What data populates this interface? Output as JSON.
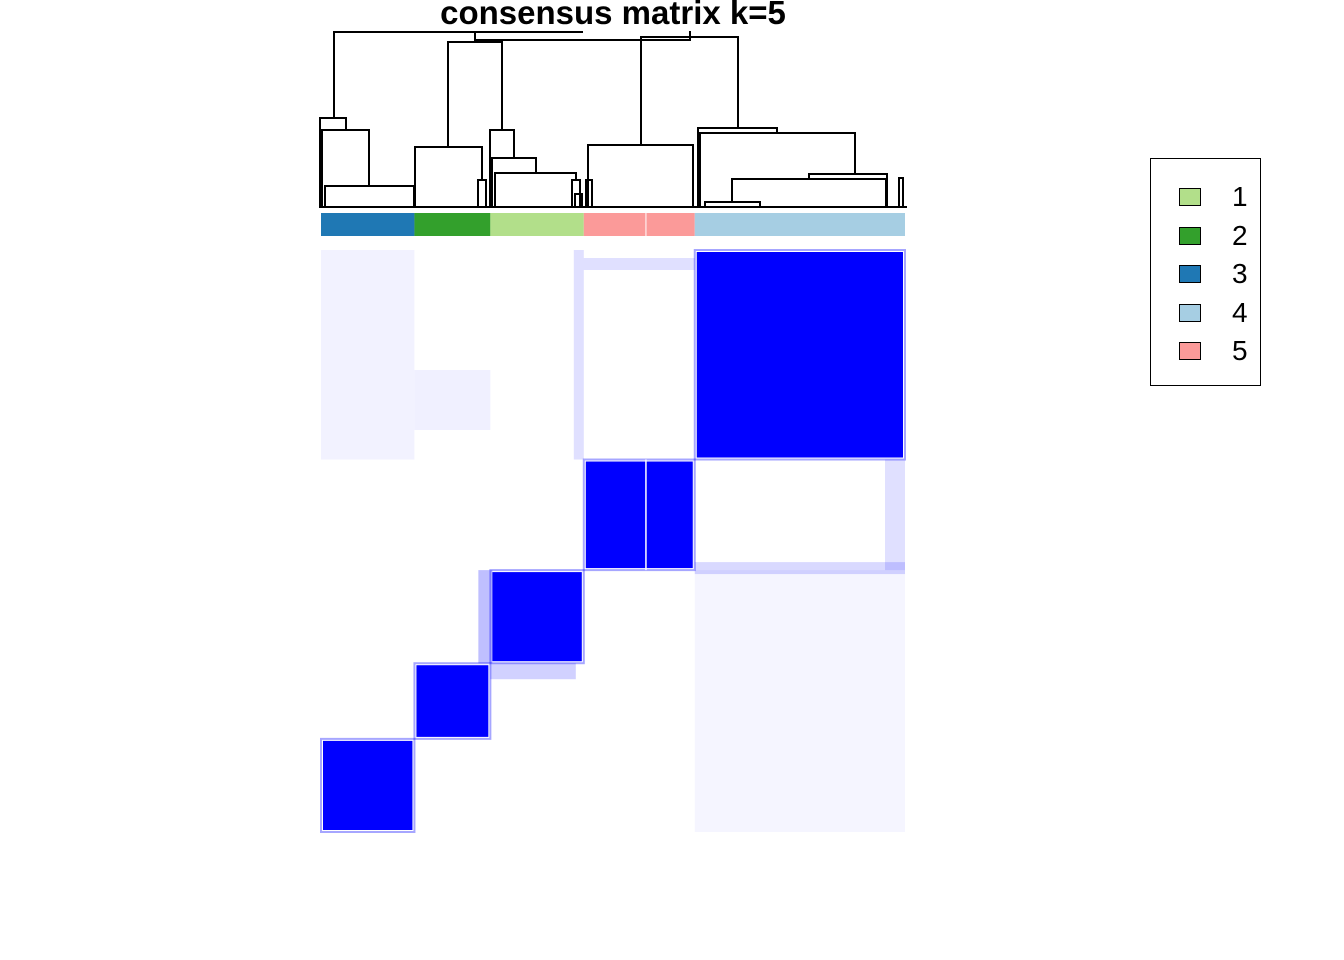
{
  "chart_data": {
    "type": "heatmap",
    "title": "consensus matrix k=5",
    "matrix_color": "#0000FF",
    "background_color": "#FFFFFF",
    "class_colors": {
      "1": "#B2DF8A",
      "2": "#33A02C",
      "3": "#1F78B4",
      "4": "#A6CEE3",
      "5": "#FB9A99"
    },
    "column_order_classes": [
      3,
      2,
      1,
      5,
      4
    ],
    "column_class_sizes": {
      "3": 16,
      "2": 13,
      "1": 16,
      "5": 19,
      "4": 36
    },
    "consensus_blocks": [
      {
        "class": 3,
        "value": 1.0
      },
      {
        "class": 2,
        "value": 1.0
      },
      {
        "class": 1,
        "value": 1.0
      },
      {
        "class": 5,
        "value": 1.0
      },
      {
        "class": 4,
        "value": 1.0
      }
    ],
    "legend": {
      "position": "right",
      "entries": [
        {
          "label": "1",
          "color": "#B2DF8A"
        },
        {
          "label": "2",
          "color": "#33A02C"
        },
        {
          "label": "3",
          "color": "#1F78B4"
        },
        {
          "label": "4",
          "color": "#A6CEE3"
        },
        {
          "label": "5",
          "color": "#FB9A99"
        }
      ]
    },
    "dendrogram": "top"
  }
}
